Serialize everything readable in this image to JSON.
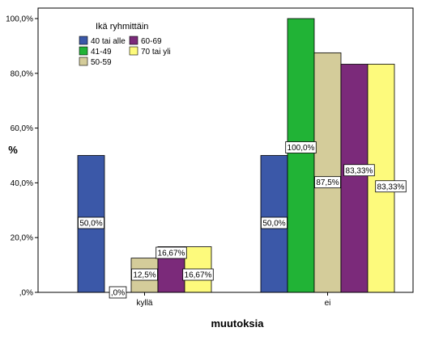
{
  "chart_data": {
    "type": "bar",
    "title": "",
    "xlabel": "muutoksia",
    "ylabel": "%",
    "categories": [
      "kyllä",
      "ei"
    ],
    "ylim": [
      0,
      100
    ],
    "yticks": [
      ",0%",
      "20,0%",
      "40,0%",
      "60,0%",
      "80,0%",
      "100,0%"
    ],
    "legend": {
      "title": "Ikä ryhmittäin",
      "position": "top-left"
    },
    "series": [
      {
        "name": "40 tai alle",
        "color": "#3b58a8",
        "values": [
          50.0,
          50.0
        ],
        "labels": [
          "50,0%",
          "50,0%"
        ]
      },
      {
        "name": "41-49",
        "color": "#21b336",
        "values": [
          0.0,
          100.0
        ],
        "labels": [
          ",0%",
          "100,0%"
        ]
      },
      {
        "name": "50-59",
        "color": "#d4cc9a",
        "values": [
          12.5,
          87.5
        ],
        "labels": [
          "12,5%",
          "87,5%"
        ]
      },
      {
        "name": "60-69",
        "color": "#7b2a7a",
        "values": [
          16.67,
          83.33
        ],
        "labels": [
          "16,67%",
          "83,33%"
        ]
      },
      {
        "name": "70 tai yli",
        "color": "#fdfa7c",
        "values": [
          16.67,
          83.33
        ],
        "labels": [
          "16,67%",
          "83,33%"
        ]
      }
    ]
  }
}
